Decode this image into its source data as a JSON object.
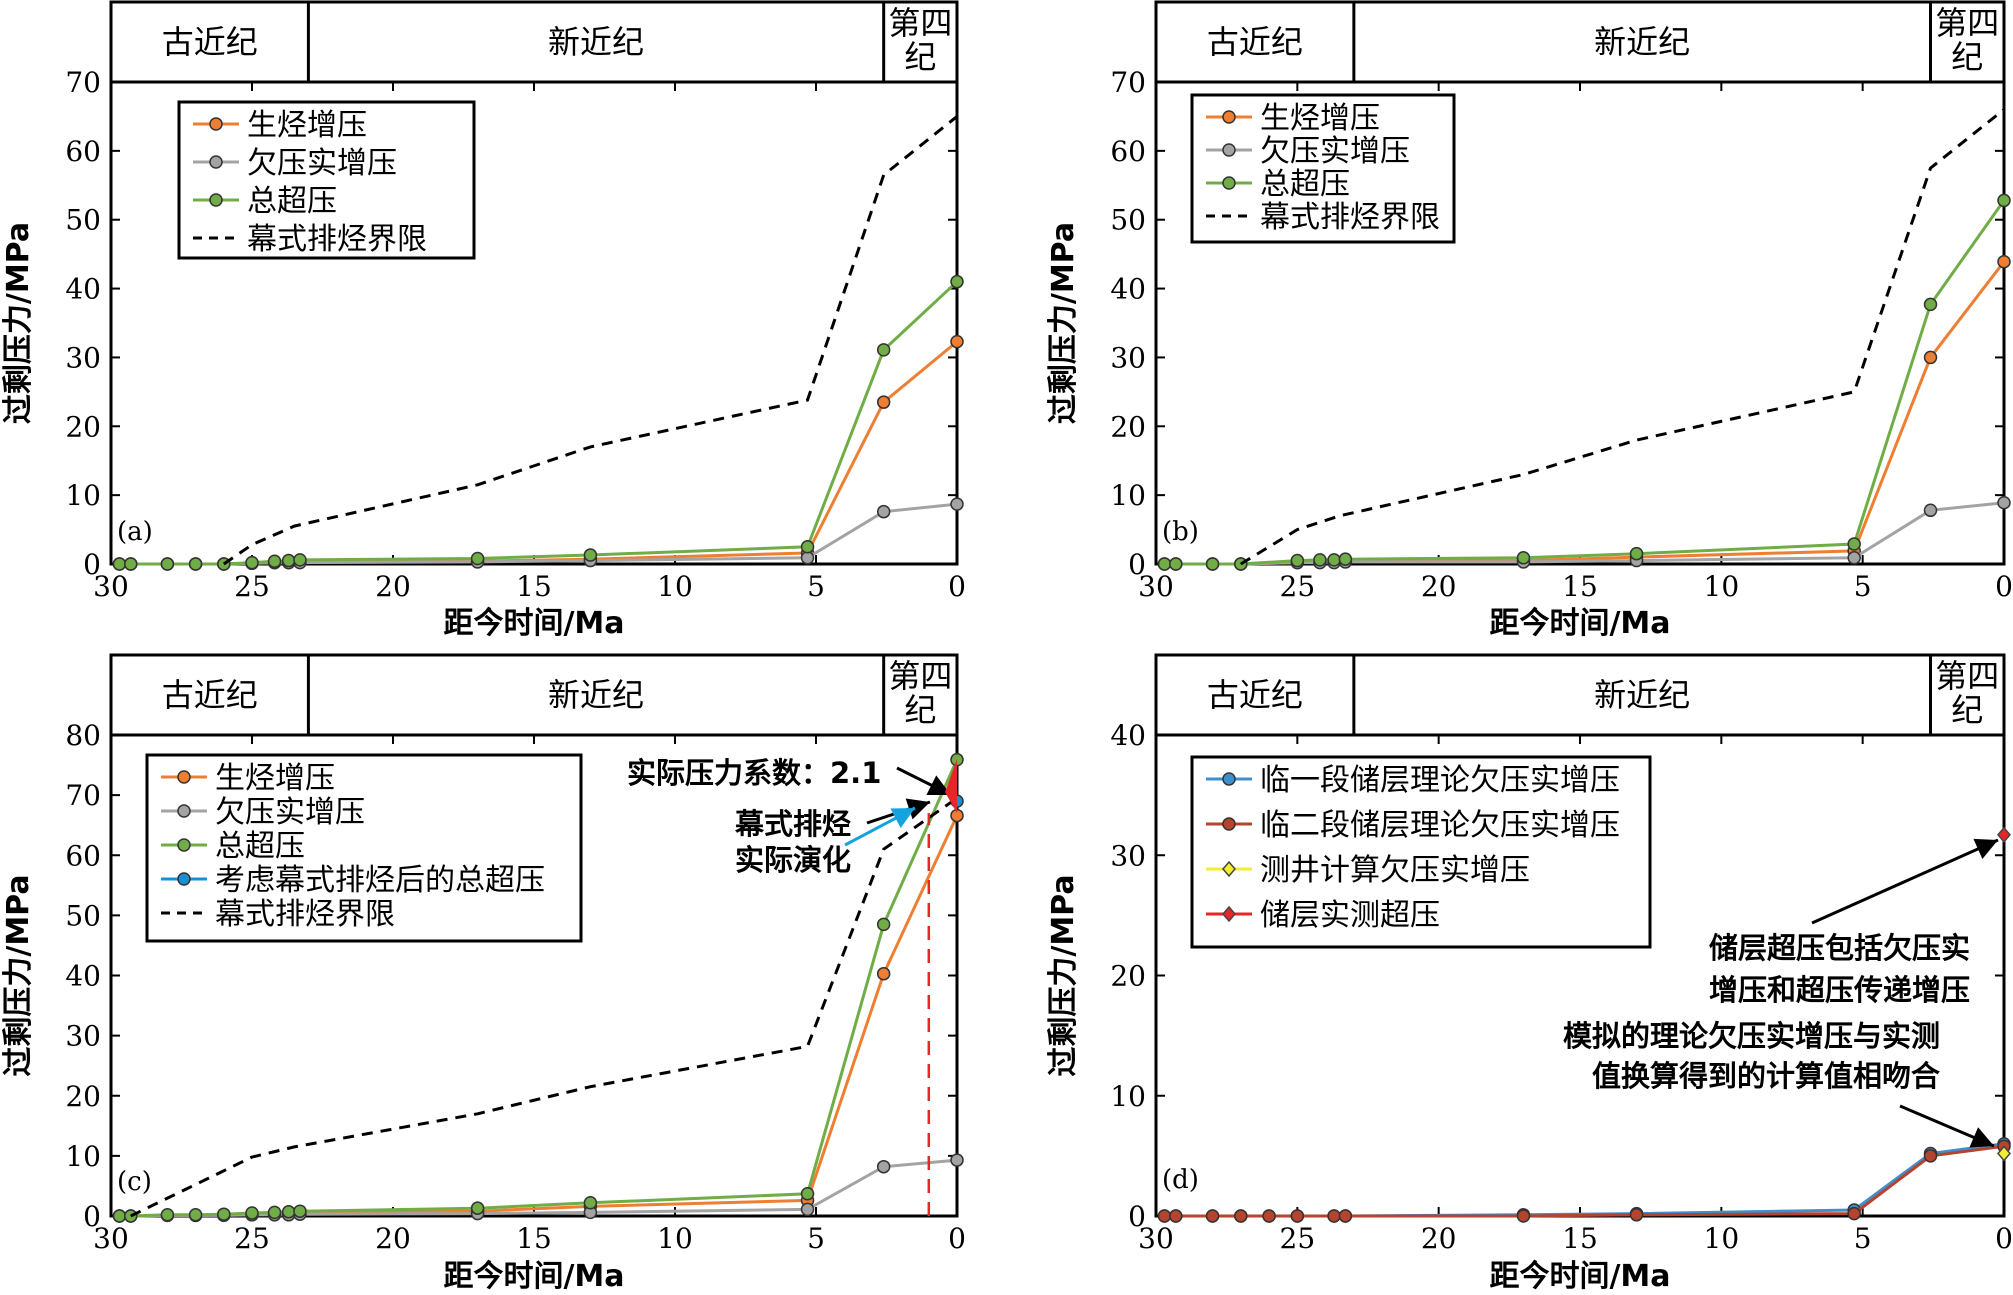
{
  "colors": {
    "hydrocarbon": "#ee7f32",
    "undercompaction": "#a3a3a3",
    "total": "#70ad46",
    "episodic_total": "#1a8fd6",
    "limit": "#000000",
    "member1": "#3d8fd0",
    "member2": "#b4442e",
    "logging": "#f4ee32",
    "measured": "#e8262a",
    "annotation_red": "#e8262a",
    "annotation_blue": "#15a3df"
  },
  "chart_data": [
    {
      "type": "line",
      "panel_label": "(a)",
      "xlabel": "距今时间/Ma",
      "ylabel": "过剩压力/MPa",
      "xlim": [
        30,
        0
      ],
      "ylim": [
        0,
        70
      ],
      "x_ticks": [
        "30",
        "25",
        "20",
        "15",
        "10",
        "5",
        "0"
      ],
      "y_ticks": [
        "0",
        "10",
        "20",
        "30",
        "40",
        "50",
        "60",
        "70"
      ],
      "eras": [
        {
          "label": "古近纪",
          "start": 30,
          "end": 23
        },
        {
          "label": "新近纪",
          "start": 23,
          "end": 2.6
        },
        {
          "label": "第四\n纪",
          "start": 2.6,
          "end": 0
        }
      ],
      "series": [
        {
          "name": "生烃增压",
          "color_key": "hydrocarbon",
          "marker": "circle",
          "x": [
            29.7,
            29.3,
            28,
            27,
            26,
            25,
            24.2,
            23.7,
            23.3,
            17,
            13,
            5.3,
            2.6,
            0
          ],
          "y": [
            0,
            0,
            0,
            0,
            0,
            0.1,
            0.2,
            0.2,
            0.3,
            0.4,
            0.7,
            1.6,
            23.5,
            32.3
          ]
        },
        {
          "name": "欠压实增压",
          "color_key": "undercompaction",
          "marker": "circle",
          "x": [
            29.7,
            29.3,
            28,
            27,
            26,
            25,
            24.2,
            23.7,
            23.3,
            17,
            13,
            5.3,
            2.6,
            0
          ],
          "y": [
            0,
            0,
            0,
            0,
            0,
            0.1,
            0.2,
            0.2,
            0.2,
            0.3,
            0.5,
            0.9,
            7.6,
            8.7
          ]
        },
        {
          "name": "总超压",
          "color_key": "total",
          "marker": "circle",
          "x": [
            29.7,
            29.3,
            28,
            27,
            26,
            25,
            24.2,
            23.7,
            23.3,
            17,
            13,
            5.3,
            2.6,
            0
          ],
          "y": [
            0,
            0,
            0,
            0,
            0,
            0.2,
            0.4,
            0.5,
            0.6,
            0.8,
            1.3,
            2.5,
            31.1,
            41
          ]
        },
        {
          "name": "幕式排烃界限",
          "color_key": "limit",
          "dashed": true,
          "x": [
            26,
            25,
            23.5,
            17,
            13,
            5.3,
            2.6,
            0
          ],
          "y": [
            0,
            2.8,
            5.5,
            11.5,
            17,
            23.8,
            56.5,
            65
          ]
        }
      ],
      "legend": [
        "生烃增压",
        "欠压实增压",
        "总超压",
        "幕式排烃界限"
      ],
      "legend_position": "top-left"
    },
    {
      "type": "line",
      "panel_label": "(b)",
      "xlabel": "距今时间/Ma",
      "ylabel": "过剩压力/MPa",
      "xlim": [
        30,
        0
      ],
      "ylim": [
        0,
        70
      ],
      "x_ticks": [
        "30",
        "25",
        "20",
        "15",
        "10",
        "5",
        "0"
      ],
      "y_ticks": [
        "0",
        "10",
        "20",
        "30",
        "40",
        "50",
        "60",
        "70"
      ],
      "eras": [
        {
          "label": "古近纪",
          "start": 30,
          "end": 23
        },
        {
          "label": "新近纪",
          "start": 23,
          "end": 2.6
        },
        {
          "label": "第四\n纪",
          "start": 2.6,
          "end": 0
        }
      ],
      "series": [
        {
          "name": "生烃增压",
          "color_key": "hydrocarbon",
          "marker": "circle",
          "x": [
            29.7,
            29.3,
            28,
            27,
            25,
            24.2,
            23.7,
            23.3,
            17,
            13,
            5.3,
            2.6,
            0
          ],
          "y": [
            0,
            0,
            0,
            0,
            0.2,
            0.3,
            0.3,
            0.4,
            0.5,
            1,
            1.9,
            30,
            43.9
          ]
        },
        {
          "name": "欠压实增压",
          "color_key": "undercompaction",
          "marker": "circle",
          "x": [
            29.7,
            29.3,
            28,
            27,
            25,
            24.2,
            23.7,
            23.3,
            17,
            13,
            5.3,
            2.6,
            0
          ],
          "y": [
            0,
            0,
            0,
            0,
            0.2,
            0.2,
            0.2,
            0.3,
            0.3,
            0.5,
            0.9,
            7.8,
            8.9
          ]
        },
        {
          "name": "总超压",
          "color_key": "total",
          "marker": "circle",
          "x": [
            29.7,
            29.3,
            28,
            27,
            25,
            24.2,
            23.7,
            23.3,
            17,
            13,
            5.3,
            2.6,
            0
          ],
          "y": [
            0,
            0,
            0,
            0,
            0.5,
            0.6,
            0.6,
            0.7,
            0.9,
            1.5,
            2.9,
            37.7,
            52.8
          ]
        },
        {
          "name": "幕式排烃界限",
          "color_key": "limit",
          "dashed": true,
          "x": [
            27,
            25,
            23.5,
            17,
            13,
            5.3,
            2.6,
            0
          ],
          "y": [
            0,
            5,
            7,
            13,
            18,
            25,
            57.5,
            66
          ]
        }
      ],
      "legend": [
        "生烃增压",
        "欠压实增压",
        "总超压",
        "幕式排烃界限"
      ],
      "legend_position": "top-left"
    },
    {
      "type": "line",
      "panel_label": "(c)",
      "xlabel": "距今时间/Ma",
      "ylabel": "过剩压力/MPa",
      "xlim": [
        30,
        0
      ],
      "ylim": [
        0,
        80
      ],
      "x_ticks": [
        "30",
        "25",
        "20",
        "15",
        "10",
        "5",
        "0"
      ],
      "y_ticks": [
        "0",
        "10",
        "20",
        "30",
        "40",
        "50",
        "60",
        "70",
        "80"
      ],
      "eras": [
        {
          "label": "古近纪",
          "start": 30,
          "end": 23
        },
        {
          "label": "新近纪",
          "start": 23,
          "end": 2.6
        },
        {
          "label": "第四\n纪",
          "start": 2.6,
          "end": 0
        }
      ],
      "series": [
        {
          "name": "生烃增压",
          "color_key": "hydrocarbon",
          "marker": "circle",
          "x": [
            29.7,
            29.3,
            28,
            27,
            26,
            25,
            24.2,
            23.7,
            23.3,
            17,
            13,
            5.3,
            2.6,
            0
          ],
          "y": [
            0,
            0,
            0.1,
            0.1,
            0.2,
            0.2,
            0.3,
            0.4,
            0.5,
            0.8,
            1.6,
            2.6,
            40.3,
            66.6
          ]
        },
        {
          "name": "欠压实增压",
          "color_key": "undercompaction",
          "marker": "circle",
          "x": [
            29.7,
            29.3,
            28,
            27,
            26,
            25,
            24.2,
            23.7,
            23.3,
            17,
            13,
            5.3,
            2.6,
            0
          ],
          "y": [
            0,
            0,
            0.1,
            0.1,
            0.1,
            0.2,
            0.2,
            0.2,
            0.3,
            0.4,
            0.6,
            1.1,
            8.2,
            9.3
          ]
        },
        {
          "name": "总超压",
          "color_key": "total",
          "marker": "circle",
          "x": [
            29.7,
            29.3,
            28,
            27,
            26,
            25,
            24.2,
            23.7,
            23.3,
            17,
            13,
            5.3,
            2.6,
            0
          ],
          "y": [
            0,
            0,
            0.2,
            0.2,
            0.3,
            0.5,
            0.6,
            0.7,
            0.8,
            1.3,
            2.2,
            3.7,
            48.5,
            75.9
          ]
        },
        {
          "name": "考虑幕式排烃后的总超压",
          "color_key": "episodic_total",
          "marker": "circle",
          "x": [
            0
          ],
          "y": [
            69
          ]
        },
        {
          "name": "幕式排烃界限",
          "color_key": "limit",
          "dashed": true,
          "x": [
            29.3,
            25,
            23.5,
            17,
            13,
            5.3,
            2.6,
            0
          ],
          "y": [
            0,
            9.8,
            11.5,
            17,
            21.5,
            28.2,
            61,
            69.5
          ]
        }
      ],
      "legend": [
        "生烃增压",
        "欠压实增压",
        "总超压",
        "考虑幕式排烃后的总超压",
        "幕式排烃界限"
      ],
      "legend_position": "top-left",
      "annotations": [
        {
          "text": "实际压力系数：2.1",
          "color": "black"
        },
        {
          "text": "幕式排烃",
          "color_key": "annotation_red"
        },
        {
          "text": "实际演化",
          "color_key": "annotation_blue"
        }
      ],
      "reference_line": {
        "x": 1,
        "y_from": 0,
        "y_to": 67,
        "color_key": "annotation_red",
        "dashed": true
      }
    },
    {
      "type": "line",
      "panel_label": "(d)",
      "xlabel": "距今时间/Ma",
      "ylabel": "过剩压力/MPa",
      "xlim": [
        30,
        0
      ],
      "ylim": [
        0,
        40
      ],
      "x_ticks": [
        "30",
        "25",
        "20",
        "15",
        "10",
        "5",
        "0"
      ],
      "y_ticks": [
        "0",
        "10",
        "20",
        "30",
        "40"
      ],
      "eras": [
        {
          "label": "古近纪",
          "start": 30,
          "end": 23
        },
        {
          "label": "新近纪",
          "start": 23,
          "end": 2.6
        },
        {
          "label": "第四\n纪",
          "start": 2.6,
          "end": 0
        }
      ],
      "series": [
        {
          "name": "临一段储层理论欠压实增压",
          "color_key": "member1",
          "marker": "circle",
          "x": [
            29.7,
            29.3,
            28,
            27,
            26,
            25,
            23.7,
            23.3,
            17,
            13,
            5.3,
            2.6,
            0
          ],
          "y": [
            0,
            0,
            0,
            0,
            0,
            0,
            0,
            0,
            0.1,
            0.2,
            0.5,
            5.2,
            6
          ]
        },
        {
          "name": "临二段储层理论欠压实增压",
          "color_key": "member2",
          "marker": "circle",
          "x": [
            29.7,
            29.3,
            28,
            27,
            26,
            25,
            23.7,
            23.3,
            17,
            13,
            5.3,
            2.6,
            0
          ],
          "y": [
            0,
            0,
            0,
            0,
            0,
            0,
            0,
            0,
            0,
            0.1,
            0.2,
            5,
            5.8
          ]
        },
        {
          "name": "测井计算欠压实增压",
          "color_key": "logging",
          "marker": "diamond",
          "x": [
            0
          ],
          "y": [
            5.2
          ]
        },
        {
          "name": "储层实测超压",
          "color_key": "measured",
          "marker": "diamond",
          "x": [
            0
          ],
          "y": [
            31.7
          ]
        }
      ],
      "legend": [
        "临一段储层理论欠压实增压",
        "临二段储层理论欠压实增压",
        "测井计算欠压实增压",
        "储层实测超压"
      ],
      "legend_position": "top-left",
      "annotations": [
        {
          "text": "储层超压包括欠压实\n增压和超压传递增压",
          "color_key": "annotation_red"
        },
        {
          "text": "模拟的理论欠压实增压与实测\n值换算得到的计算值相吻合",
          "color_key": "annotation_red"
        }
      ]
    }
  ]
}
